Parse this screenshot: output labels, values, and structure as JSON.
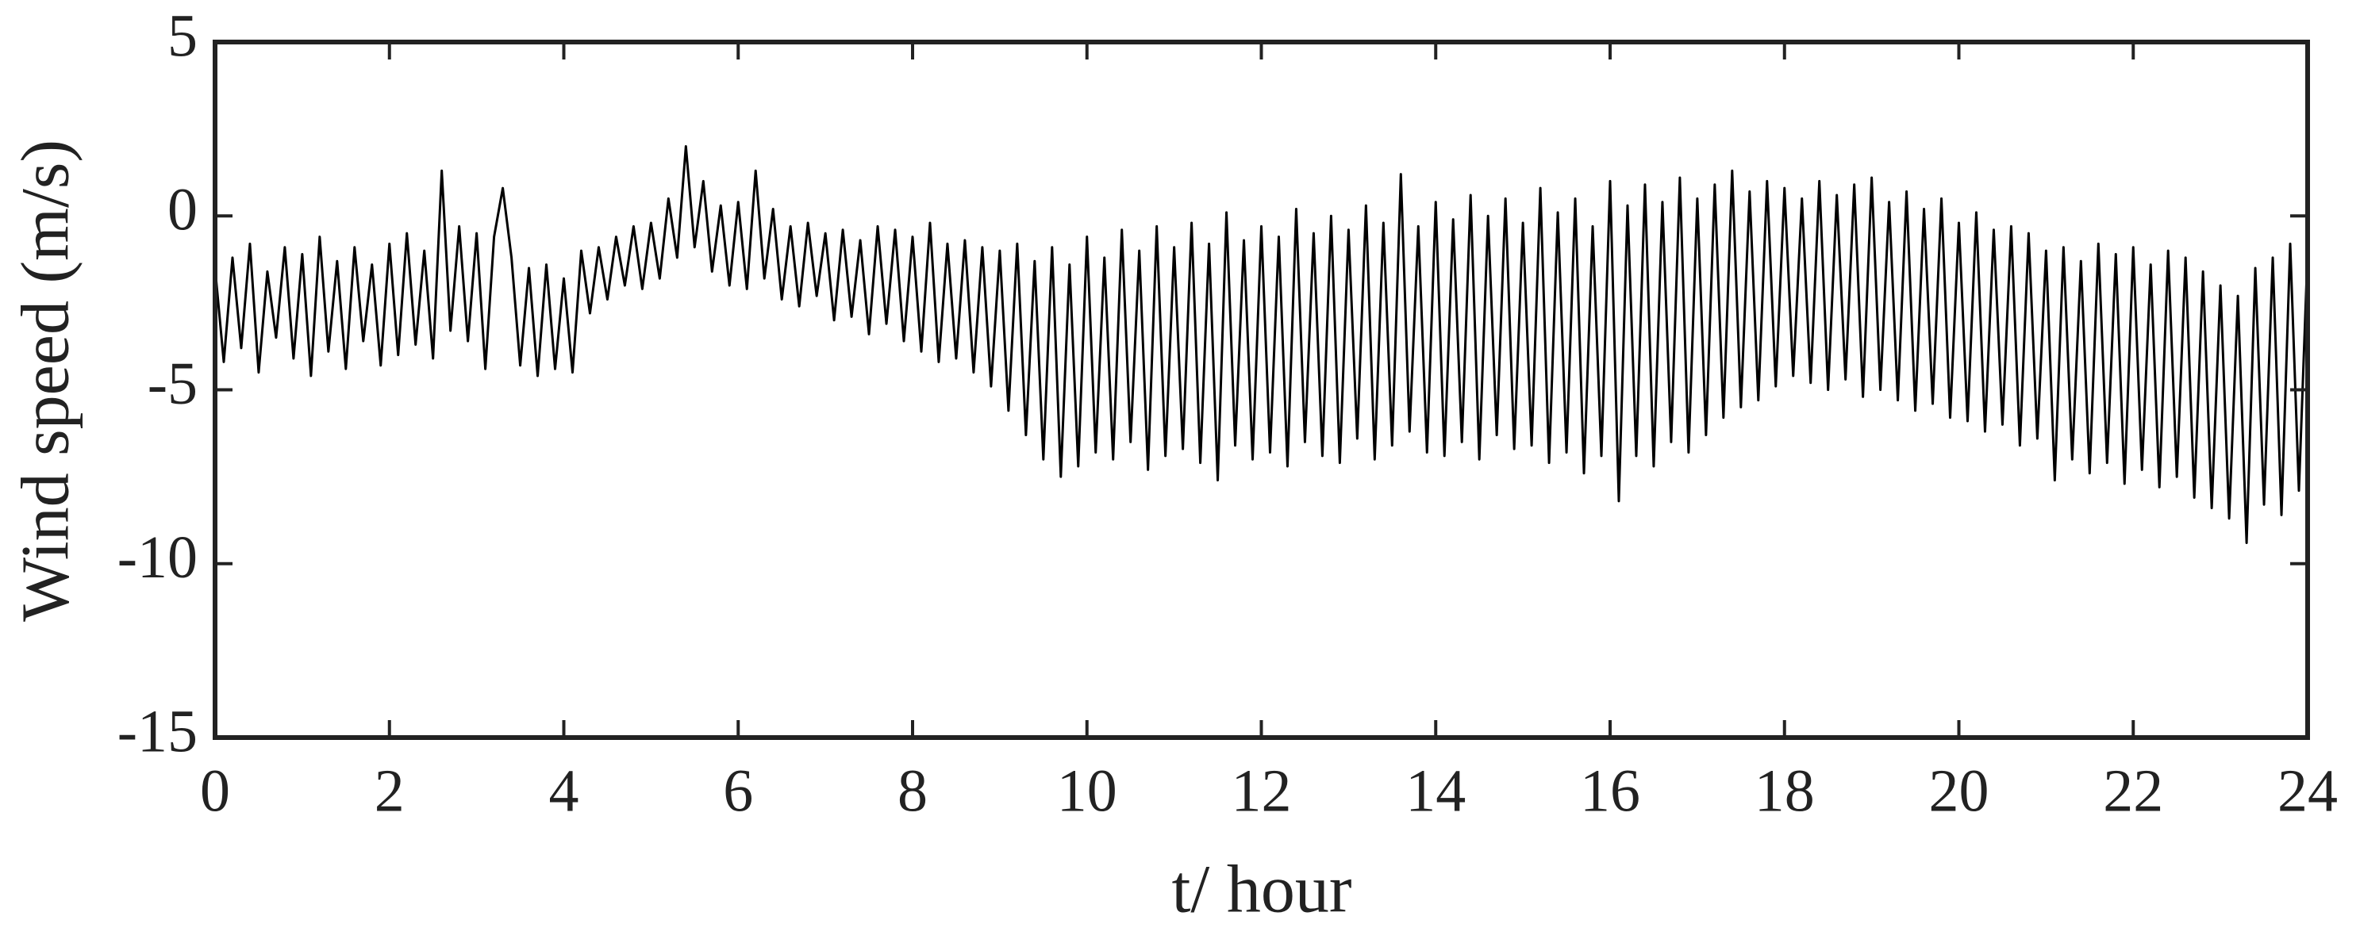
{
  "chart_data": {
    "type": "line",
    "xlabel": "t/ hour",
    "ylabel": "Wind speed (m/s)",
    "xlim": [
      0,
      24
    ],
    "xticks": [
      0,
      2,
      4,
      6,
      8,
      10,
      12,
      14,
      16,
      18,
      20,
      22,
      24
    ],
    "ylim": [
      -15,
      5
    ],
    "yticks": [
      -15,
      -10,
      -5,
      0,
      5
    ],
    "grid": false,
    "series": [
      {
        "color": "#000000",
        "x": [
          0,
          0.1,
          0.2,
          0.3,
          0.4,
          0.5,
          0.6,
          0.7,
          0.8,
          0.9,
          1,
          1.1,
          1.2,
          1.3,
          1.4,
          1.5,
          1.6,
          1.7,
          1.8,
          1.9,
          2,
          2.1,
          2.2,
          2.3,
          2.4,
          2.5,
          2.6,
          2.7,
          2.8,
          2.9,
          3,
          3.1,
          3.2,
          3.3,
          3.4,
          3.5,
          3.6,
          3.7,
          3.8,
          3.9,
          4,
          4.1,
          4.2,
          4.3,
          4.4,
          4.5,
          4.6,
          4.7,
          4.8,
          4.9,
          5,
          5.1,
          5.2,
          5.3,
          5.4,
          5.5,
          5.6,
          5.7,
          5.8,
          5.9,
          6,
          6.1,
          6.2,
          6.3,
          6.4,
          6.5,
          6.6,
          6.7,
          6.8,
          6.9,
          7,
          7.1,
          7.2,
          7.3,
          7.4,
          7.5,
          7.6,
          7.7,
          7.8,
          7.9,
          8,
          8.1,
          8.2,
          8.3,
          8.4,
          8.5,
          8.6,
          8.7,
          8.8,
          8.9,
          9,
          9.1,
          9.2,
          9.3,
          9.4,
          9.5,
          9.6,
          9.7,
          9.8,
          9.9,
          10,
          10.1,
          10.2,
          10.3,
          10.4,
          10.5,
          10.6,
          10.7,
          10.8,
          10.9,
          11,
          11.1,
          11.2,
          11.3,
          11.4,
          11.5,
          11.6,
          11.7,
          11.8,
          11.9,
          12,
          12.1,
          12.2,
          12.3,
          12.4,
          12.5,
          12.6,
          12.7,
          12.8,
          12.9,
          13,
          13.1,
          13.2,
          13.3,
          13.4,
          13.5,
          13.6,
          13.7,
          13.8,
          13.9,
          14,
          14.1,
          14.2,
          14.3,
          14.4,
          14.5,
          14.6,
          14.7,
          14.8,
          14.9,
          15,
          15.1,
          15.2,
          15.3,
          15.4,
          15.5,
          15.6,
          15.7,
          15.8,
          15.9,
          16,
          16.1,
          16.2,
          16.3,
          16.4,
          16.5,
          16.6,
          16.7,
          16.8,
          16.9,
          17,
          17.1,
          17.2,
          17.3,
          17.4,
          17.5,
          17.6,
          17.7,
          17.8,
          17.9,
          18,
          18.1,
          18.2,
          18.3,
          18.4,
          18.5,
          18.6,
          18.7,
          18.8,
          18.9,
          19,
          19.1,
          19.2,
          19.3,
          19.4,
          19.5,
          19.6,
          19.7,
          19.8,
          19.9,
          20,
          20.1,
          20.2,
          20.3,
          20.4,
          20.5,
          20.6,
          20.7,
          20.8,
          20.9,
          21,
          21.1,
          21.2,
          21.3,
          21.4,
          21.5,
          21.6,
          21.7,
          21.8,
          21.9,
          22,
          22.1,
          22.2,
          22.3,
          22.4,
          22.5,
          22.6,
          22.7,
          22.8,
          22.9,
          23,
          23.1,
          23.2,
          23.3,
          23.4,
          23.5,
          23.6,
          23.7,
          23.8,
          23.9,
          24
        ],
        "values": [
          -1.5,
          -4.2,
          -1.2,
          -3.8,
          -0.8,
          -4.5,
          -1.6,
          -3.5,
          -0.9,
          -4.1,
          -1.1,
          -4.6,
          -0.6,
          -3.9,
          -1.3,
          -4.4,
          -0.9,
          -3.6,
          -1.4,
          -4.3,
          -0.8,
          -4.0,
          -0.5,
          -3.7,
          -1.0,
          -4.1,
          1.3,
          -3.3,
          -0.3,
          -3.6,
          -0.5,
          -4.4,
          -0.6,
          0.8,
          -1.2,
          -4.3,
          -1.5,
          -4.6,
          -1.4,
          -4.4,
          -1.8,
          -4.5,
          -1.0,
          -2.8,
          -0.9,
          -2.4,
          -0.6,
          -2.0,
          -0.3,
          -2.1,
          -0.2,
          -1.8,
          0.5,
          -1.2,
          2.0,
          -0.9,
          1.0,
          -1.6,
          0.3,
          -2.0,
          0.4,
          -2.1,
          1.3,
          -1.8,
          0.2,
          -2.4,
          -0.3,
          -2.6,
          -0.2,
          -2.3,
          -0.5,
          -3.0,
          -0.4,
          -2.9,
          -0.7,
          -3.4,
          -0.3,
          -3.1,
          -0.4,
          -3.6,
          -0.6,
          -3.9,
          -0.2,
          -4.2,
          -0.8,
          -4.1,
          -0.7,
          -4.5,
          -0.9,
          -4.9,
          -1.0,
          -5.6,
          -0.8,
          -6.3,
          -1.3,
          -7.0,
          -0.9,
          -7.5,
          -1.4,
          -7.2,
          -0.6,
          -6.8,
          -1.2,
          -7.0,
          -0.4,
          -6.5,
          -1.0,
          -7.3,
          -0.3,
          -6.9,
          -0.9,
          -6.7,
          -0.2,
          -7.1,
          -0.8,
          -7.6,
          0.1,
          -6.6,
          -0.7,
          -7.0,
          -0.3,
          -6.8,
          -0.6,
          -7.2,
          0.2,
          -6.5,
          -0.5,
          -6.9,
          0.0,
          -7.1,
          -0.4,
          -6.4,
          0.3,
          -7.0,
          -0.2,
          -6.6,
          1.2,
          -6.2,
          -0.3,
          -6.8,
          0.4,
          -6.9,
          -0.1,
          -6.5,
          0.6,
          -7.0,
          0.0,
          -6.3,
          0.5,
          -6.7,
          -0.2,
          -6.6,
          0.8,
          -7.1,
          0.1,
          -6.8,
          0.5,
          -7.4,
          -0.3,
          -6.9,
          1.0,
          -8.2,
          0.3,
          -6.9,
          0.9,
          -7.2,
          0.4,
          -6.5,
          1.1,
          -6.8,
          0.5,
          -6.3,
          0.9,
          -5.8,
          1.3,
          -5.5,
          0.7,
          -5.3,
          1.0,
          -4.9,
          0.8,
          -4.6,
          0.5,
          -4.8,
          1.0,
          -5.0,
          0.6,
          -4.7,
          0.9,
          -5.2,
          1.1,
          -5.0,
          0.4,
          -5.3,
          0.7,
          -5.6,
          0.2,
          -5.4,
          0.5,
          -5.8,
          -0.2,
          -5.9,
          0.1,
          -6.2,
          -0.4,
          -6.0,
          -0.3,
          -6.6,
          -0.5,
          -6.4,
          -1.0,
          -7.6,
          -0.9,
          -7.0,
          -1.3,
          -7.4,
          -0.8,
          -7.1,
          -1.1,
          -7.7,
          -0.9,
          -7.3,
          -1.4,
          -7.8,
          -1.0,
          -7.5,
          -1.2,
          -8.1,
          -1.6,
          -8.4,
          -2.0,
          -8.7,
          -2.3,
          -9.4,
          -1.5,
          -8.3,
          -1.2,
          -8.6,
          -0.8,
          -7.9,
          -1.0
        ]
      }
    ]
  }
}
